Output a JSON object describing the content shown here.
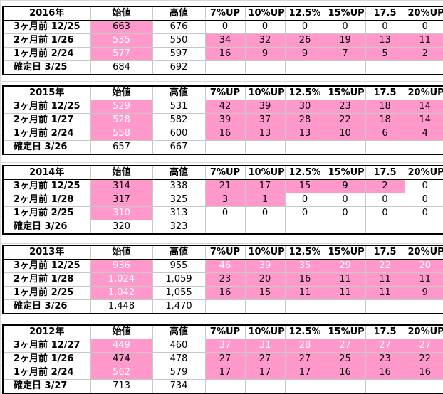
{
  "colors": {
    "highlight": "#ff99cc",
    "faint_text": "#ffffff",
    "border": "#000000"
  },
  "columns": [
    "始値",
    "高値",
    "7%UP",
    "10%UP",
    "12.5%",
    "15%UP",
    "17.5",
    "20%UP"
  ],
  "blocks": [
    {
      "year": "2016年",
      "rows": [
        {
          "label": "3ヶ月前 12/25",
          "open": "663",
          "high": "676",
          "up": [
            "0",
            "0",
            "0",
            "0",
            "0",
            "0"
          ],
          "open_pink": true,
          "open_faint": false,
          "up_pink": [
            false,
            false,
            false,
            false,
            false,
            false
          ],
          "up_faint": false
        },
        {
          "label": "2ヶ月前 1/26",
          "open": "535",
          "high": "550",
          "up": [
            "34",
            "32",
            "26",
            "19",
            "13",
            "11"
          ],
          "open_pink": true,
          "open_faint": true,
          "up_pink": [
            true,
            true,
            true,
            true,
            true,
            true
          ],
          "up_faint": false
        },
        {
          "label": "1ヶ月前 2/24",
          "open": "577",
          "high": "597",
          "up": [
            "16",
            "9",
            "9",
            "7",
            "5",
            "2"
          ],
          "open_pink": true,
          "open_faint": true,
          "up_pink": [
            true,
            true,
            true,
            true,
            true,
            true
          ],
          "up_faint": false
        },
        {
          "label": "確定日 3/25",
          "open": "684",
          "high": "692",
          "up": [
            "",
            "",
            "",
            "",
            "",
            ""
          ],
          "open_pink": false,
          "open_faint": false,
          "up_pink": [
            false,
            false,
            false,
            false,
            false,
            false
          ],
          "up_faint": false
        }
      ]
    },
    {
      "year": "2015年",
      "rows": [
        {
          "label": "3ヶ月前 12/25",
          "open": "529",
          "high": "531",
          "up": [
            "42",
            "39",
            "30",
            "23",
            "18",
            "14"
          ],
          "open_pink": true,
          "open_faint": true,
          "up_pink": [
            true,
            true,
            true,
            true,
            true,
            true
          ],
          "up_faint": false
        },
        {
          "label": "2ヶ月前 1/27",
          "open": "528",
          "high": "582",
          "up": [
            "39",
            "37",
            "28",
            "22",
            "18",
            "14"
          ],
          "open_pink": true,
          "open_faint": true,
          "up_pink": [
            true,
            true,
            true,
            true,
            true,
            true
          ],
          "up_faint": false
        },
        {
          "label": "1ヶ月前 2/24",
          "open": "558",
          "high": "600",
          "up": [
            "16",
            "13",
            "13",
            "10",
            "6",
            "4"
          ],
          "open_pink": true,
          "open_faint": true,
          "up_pink": [
            true,
            true,
            true,
            true,
            true,
            true
          ],
          "up_faint": false
        },
        {
          "label": "確定日 3/26",
          "open": "657",
          "high": "667",
          "up": [
            "",
            "",
            "",
            "",
            "",
            ""
          ],
          "open_pink": false,
          "open_faint": false,
          "up_pink": [
            false,
            false,
            false,
            false,
            false,
            false
          ],
          "up_faint": false
        }
      ]
    },
    {
      "year": "2014年",
      "rows": [
        {
          "label": "3ヶ月前 12/25",
          "open": "314",
          "high": "338",
          "up": [
            "21",
            "17",
            "15",
            "9",
            "2",
            "0"
          ],
          "open_pink": true,
          "open_faint": false,
          "up_pink": [
            true,
            true,
            true,
            true,
            true,
            false
          ],
          "up_faint": false
        },
        {
          "label": "2ヶ月前 1/28",
          "open": "317",
          "high": "325",
          "up": [
            "3",
            "1",
            "0",
            "0",
            "0",
            "0"
          ],
          "open_pink": true,
          "open_faint": false,
          "up_pink": [
            true,
            true,
            false,
            false,
            false,
            false
          ],
          "up_faint": false
        },
        {
          "label": "1ヶ月前 2/25",
          "open": "310",
          "high": "313",
          "up": [
            "0",
            "0",
            "0",
            "0",
            "0",
            "0"
          ],
          "open_pink": true,
          "open_faint": true,
          "up_pink": [
            false,
            false,
            false,
            false,
            false,
            false
          ],
          "up_faint": false
        },
        {
          "label": "確定日 3/26",
          "open": "320",
          "high": "323",
          "up": [
            "",
            "",
            "",
            "",
            "",
            ""
          ],
          "open_pink": false,
          "open_faint": false,
          "up_pink": [
            false,
            false,
            false,
            false,
            false,
            false
          ],
          "up_faint": false
        }
      ]
    },
    {
      "year": "2013年",
      "rows": [
        {
          "label": "3ヶ月前 12/25",
          "open": "936",
          "high": "955",
          "up": [
            "46",
            "39",
            "35",
            "29",
            "22",
            "20"
          ],
          "open_pink": true,
          "open_faint": true,
          "up_pink": [
            true,
            true,
            true,
            true,
            true,
            true
          ],
          "up_faint": true
        },
        {
          "label": "2ヶ月前 1/28",
          "open": "1,024",
          "high": "1,059",
          "up": [
            "23",
            "20",
            "16",
            "11",
            "11",
            "11"
          ],
          "open_pink": true,
          "open_faint": true,
          "up_pink": [
            true,
            true,
            true,
            true,
            true,
            true
          ],
          "up_faint": false
        },
        {
          "label": "1ヶ月前 2/25",
          "open": "1,042",
          "high": "1,055",
          "up": [
            "16",
            "15",
            "11",
            "11",
            "11",
            "9"
          ],
          "open_pink": true,
          "open_faint": true,
          "up_pink": [
            true,
            true,
            true,
            true,
            true,
            true
          ],
          "up_faint": false
        },
        {
          "label": "確定日 3/26",
          "open": "1,448",
          "high": "1,470",
          "up": [
            "",
            "",
            "",
            "",
            "",
            ""
          ],
          "open_pink": false,
          "open_faint": false,
          "up_pink": [
            false,
            false,
            false,
            false,
            false,
            false
          ],
          "up_faint": false
        }
      ]
    },
    {
      "year": "2012年",
      "rows": [
        {
          "label": "3ヶ月前 12/27",
          "open": "449",
          "high": "460",
          "up": [
            "37",
            "31",
            "28",
            "27",
            "27",
            "27"
          ],
          "open_pink": true,
          "open_faint": true,
          "up_pink": [
            true,
            true,
            true,
            true,
            true,
            true
          ],
          "up_faint": true
        },
        {
          "label": "2ヶ月前 1/26",
          "open": "474",
          "high": "478",
          "up": [
            "27",
            "27",
            "27",
            "25",
            "23",
            "22"
          ],
          "open_pink": true,
          "open_faint": false,
          "up_pink": [
            true,
            true,
            true,
            true,
            true,
            true
          ],
          "up_faint": false
        },
        {
          "label": "1ヶ月前 2/24",
          "open": "562",
          "high": "579",
          "up": [
            "17",
            "17",
            "17",
            "16",
            "16",
            "16"
          ],
          "open_pink": true,
          "open_faint": true,
          "up_pink": [
            true,
            true,
            true,
            true,
            true,
            true
          ],
          "up_faint": false
        },
        {
          "label": "確定日 3/27",
          "open": "713",
          "high": "734",
          "up": [
            "",
            "",
            "",
            "",
            "",
            ""
          ],
          "open_pink": false,
          "open_faint": false,
          "up_pink": [
            false,
            false,
            false,
            false,
            false,
            false
          ],
          "up_faint": false
        }
      ]
    }
  ]
}
